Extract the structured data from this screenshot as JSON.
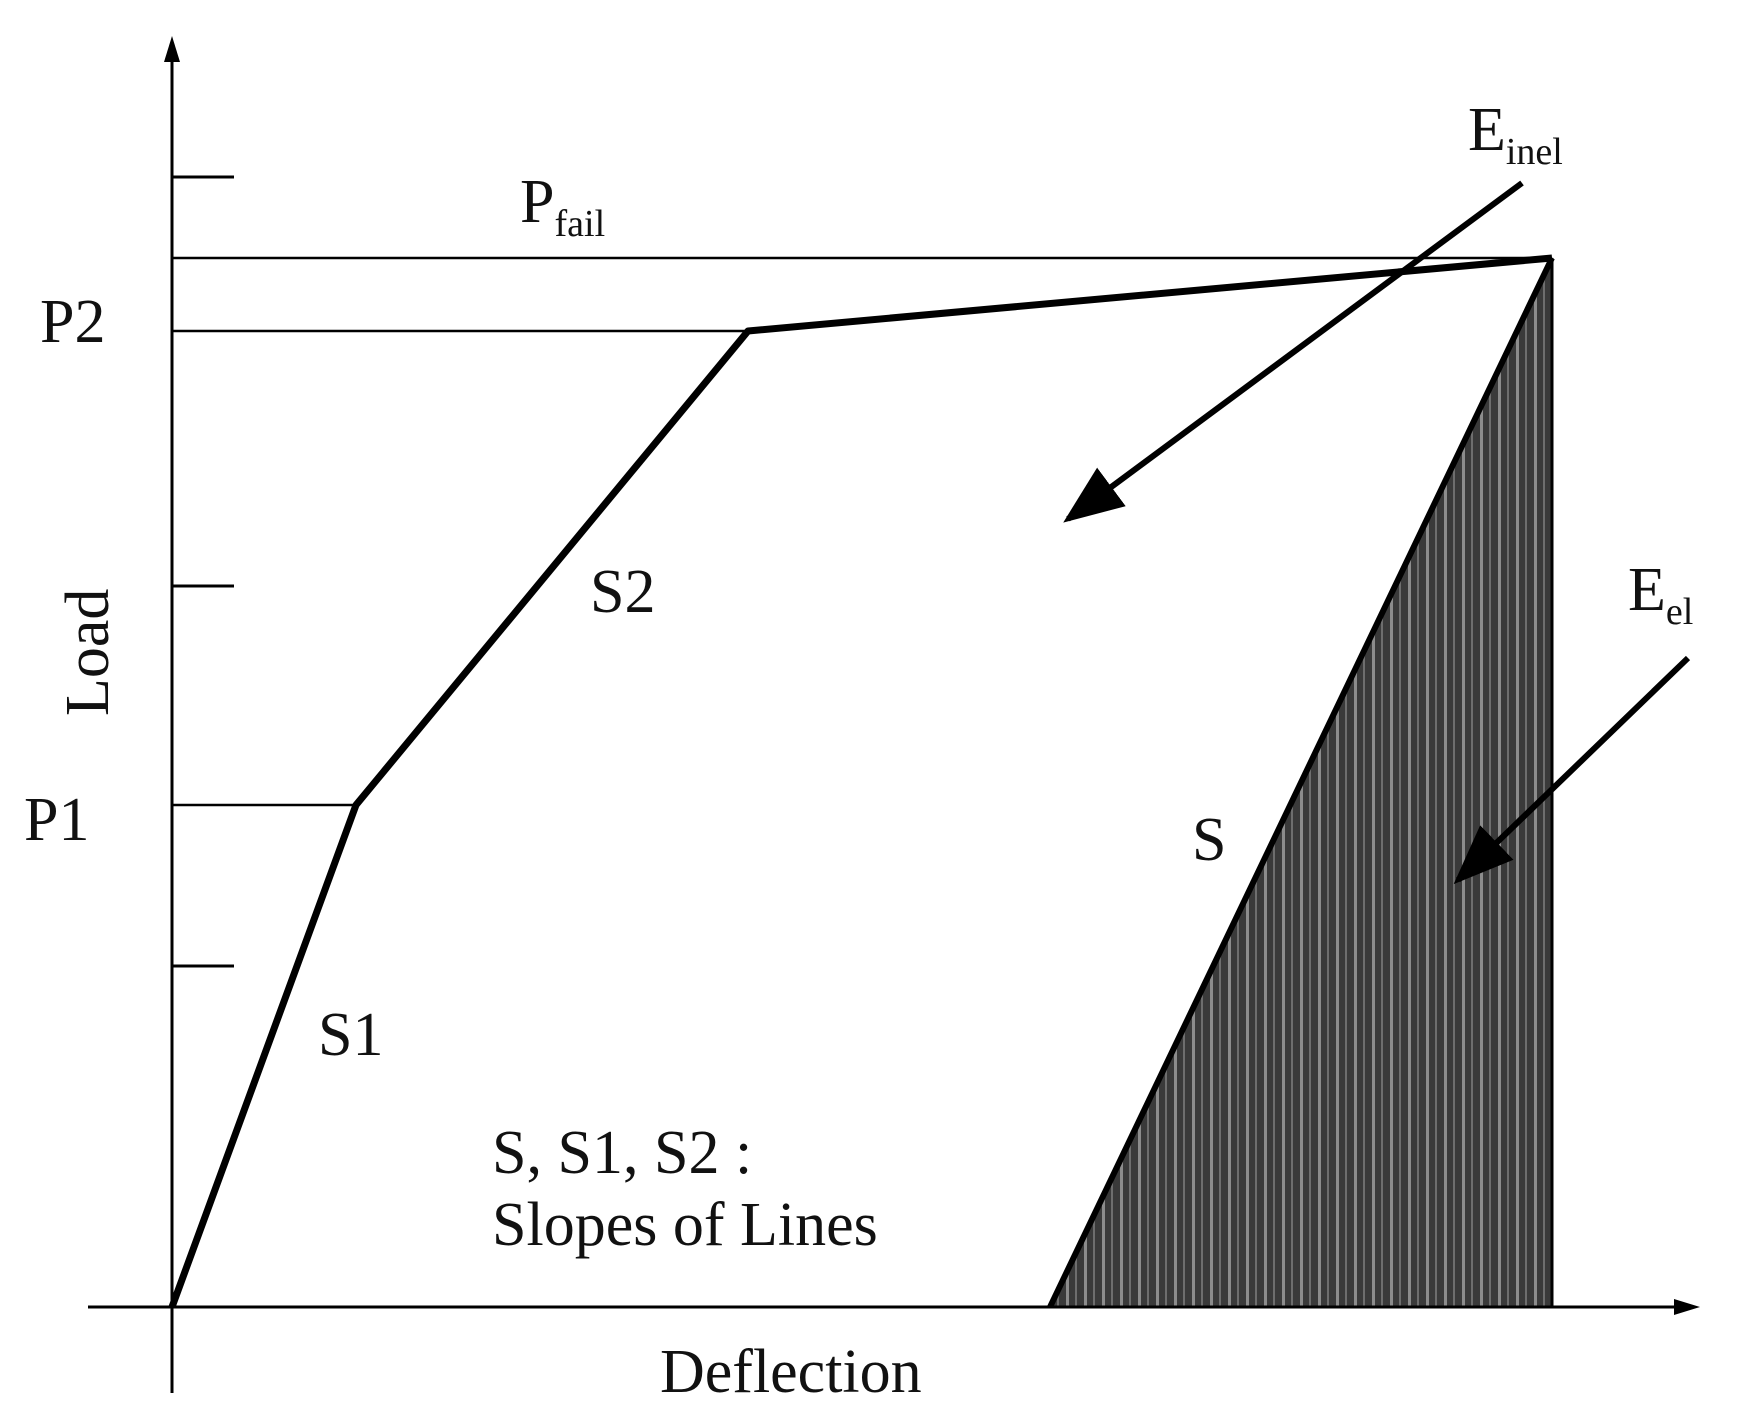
{
  "axes": {
    "x_label": "Deflection",
    "y_label": "Load"
  },
  "levels": {
    "p1": "P1",
    "p2": "P2",
    "pfail_main": "P",
    "pfail_sub": "fail"
  },
  "slopes": {
    "s": "S",
    "s1": "S1",
    "s2": "S2"
  },
  "energies": {
    "inelastic_main": "E",
    "inelastic_sub": "inel",
    "elastic_main": "E",
    "elastic_sub": "el"
  },
  "note": {
    "line1": "S, S1, S2 :",
    "line2": "Slopes of Lines"
  },
  "colors": {
    "line": "#000000",
    "hatch_fill": "#3a3a3a",
    "hatch_stripe": "#8c8c8c"
  }
}
